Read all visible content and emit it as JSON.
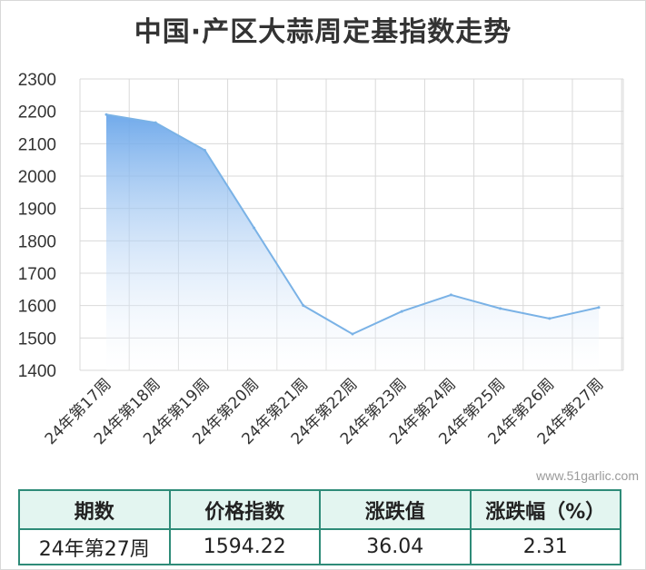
{
  "title": "中国·产区大蒜周定基指数走势",
  "watermark": "www.51garlic.com",
  "chart_data": {
    "type": "area",
    "categories": [
      "24年第17周",
      "24年第18周",
      "24年第19周",
      "24年第20周",
      "24年第21周",
      "24年第22周",
      "24年第23周",
      "24年第24周",
      "24年第25周",
      "24年第26周",
      "24年第27周"
    ],
    "values": [
      2190,
      2165,
      2080,
      1840,
      1600,
      1512,
      1582,
      1633,
      1591,
      1560,
      1594.22
    ],
    "ylim": [
      1400,
      2300
    ],
    "yticks": [
      1400,
      1500,
      1600,
      1700,
      1800,
      1900,
      2000,
      2100,
      2200,
      2300
    ],
    "grid": true,
    "colors": {
      "line": "#7ab2e6",
      "fill_top": "#6aa6ea",
      "fill_bottom": "#ffffff",
      "grid": "#d9d9d9"
    }
  },
  "table": {
    "headers": [
      "期数",
      "价格指数",
      "涨跌值",
      "涨跌幅（%）"
    ],
    "row": [
      "24年第27周",
      "1594.22",
      "36.04",
      "2.31"
    ],
    "colors": {
      "border": "#2e8b78",
      "header_bg": "#e3f5f0"
    }
  }
}
